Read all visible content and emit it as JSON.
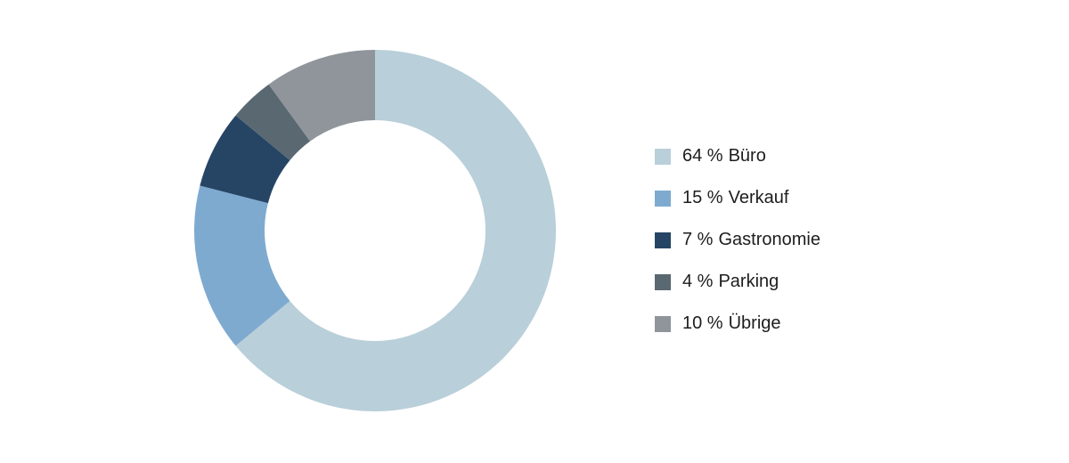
{
  "chart_data": {
    "type": "donut",
    "categories": [
      "Büro",
      "Verkauf",
      "Gastronomie",
      "Parking",
      "Übrige"
    ],
    "values": [
      64,
      15,
      7,
      4,
      10
    ],
    "value_labels": [
      "64 %",
      "15 %",
      "7 %",
      "4 %",
      "10 %"
    ],
    "colors": [
      "#b9cfd9",
      "#7eaad0",
      "#264565",
      "#5a6872",
      "#8f959b"
    ],
    "legend": "right"
  }
}
